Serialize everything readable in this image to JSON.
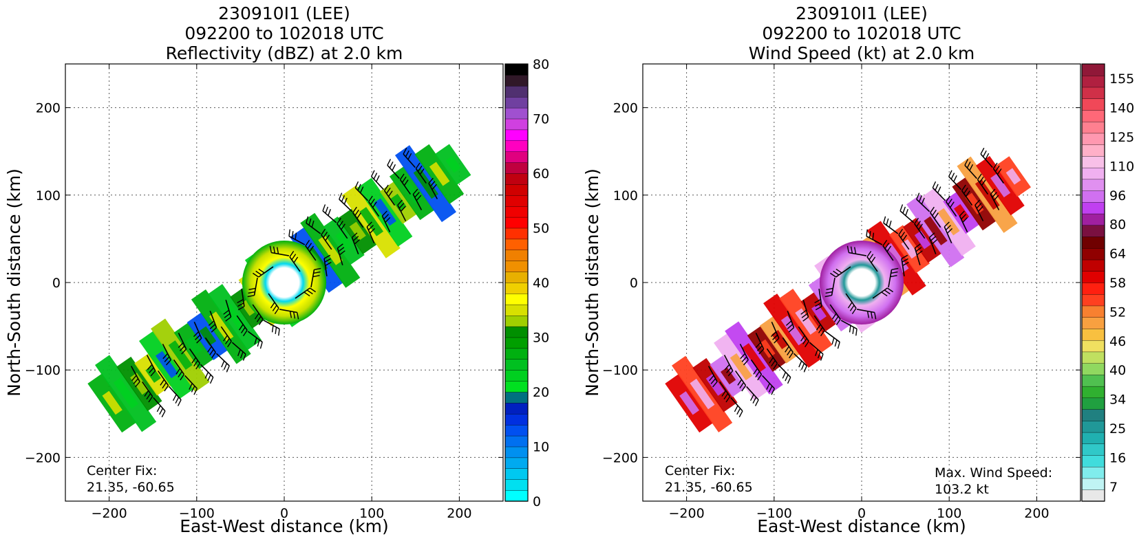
{
  "chart_data": [
    {
      "type": "heatmap",
      "title_lines": [
        "230910I1 (LEE)",
        "092200 to 102018 UTC",
        "Reflectivity (dBZ) at 2.0 km"
      ],
      "xlabel": "East-West distance (km)",
      "ylabel": "North-South distance (km)",
      "xlim": [
        -250,
        250
      ],
      "ylim": [
        -250,
        250
      ],
      "xticks": [
        -200,
        -100,
        0,
        100,
        200
      ],
      "yticks": [
        -200,
        -100,
        0,
        100,
        200
      ],
      "xtick_labels": [
        "−200",
        "−100",
        "0",
        "100",
        "200"
      ],
      "ytick_labels": [
        "−200",
        "−100",
        "0",
        "100",
        "200"
      ],
      "grid": true,
      "colorbar": {
        "min": 0,
        "max": 80,
        "tick_values": [
          0,
          10,
          20,
          30,
          40,
          50,
          60,
          70,
          80
        ],
        "tick_labels": [
          "0",
          "10",
          "20",
          "30",
          "40",
          "50",
          "60",
          "70",
          "80"
        ],
        "colors": [
          "#00ffff",
          "#00e0f0",
          "#00c8f0",
          "#00aaf0",
          "#0090f0",
          "#0070f0",
          "#0050f0",
          "#0030e0",
          "#0020c0",
          "#007080",
          "#00e020",
          "#00d020",
          "#00c020",
          "#00b010",
          "#009f00",
          "#008f00",
          "#9fcf00",
          "#d8e000",
          "#ffff00",
          "#f0d000",
          "#e8b000",
          "#f09000",
          "#f08000",
          "#ff6000",
          "#ff3000",
          "#ff0000",
          "#f00000",
          "#e00000",
          "#d00000",
          "#c00010",
          "#c0003f",
          "#e0007f",
          "#ff00c0",
          "#ff00ff",
          "#d040e0",
          "#a050d0",
          "#7040a0",
          "#503070",
          "#301828",
          "#000000"
        ]
      },
      "annotations": [
        {
          "lines": [
            "Center Fix:",
            "21.35, -60.65"
          ],
          "position": "bottom-left"
        }
      ],
      "storm": {
        "center": [
          0,
          0
        ],
        "band_angle_deg": 35,
        "max_extent_east_km": 200,
        "max_extent_west_km": -205,
        "eye_radius_km": 15
      }
    },
    {
      "type": "heatmap",
      "title_lines": [
        "230910I1 (LEE)",
        "092200 to 102018 UTC",
        "Wind Speed (kt) at 2.0 km"
      ],
      "xlabel": "East-West distance (km)",
      "ylabel": "North-South distance (km)",
      "xlim": [
        -250,
        250
      ],
      "ylim": [
        -250,
        250
      ],
      "xticks": [
        -200,
        -100,
        0,
        100,
        200
      ],
      "yticks": [
        -200,
        -100,
        0,
        100,
        200
      ],
      "xtick_labels": [
        "−200",
        "−100",
        "0",
        "100",
        "200"
      ],
      "ytick_labels": [
        "−200",
        "−100",
        "0",
        "100",
        "200"
      ],
      "grid": true,
      "colorbar": {
        "tick_labels": [
          "7",
          "16",
          "25",
          "34",
          "40",
          "46",
          "52",
          "58",
          "64",
          "80",
          "96",
          "110",
          "125",
          "140",
          "155"
        ],
        "colors": [
          "#e8e8e8",
          "#c0f4f4",
          "#80ecec",
          "#40dcdc",
          "#30c8c8",
          "#20b0b0",
          "#209898",
          "#208080",
          "#20a040",
          "#30b030",
          "#50c050",
          "#90d860",
          "#c0e060",
          "#f0e060",
          "#f8c040",
          "#f8a040",
          "#f88030",
          "#ff4020",
          "#ff2010",
          "#e00000",
          "#c00000",
          "#900000",
          "#700000",
          "#7a1040",
          "#a020a0",
          "#c040f0",
          "#d070f0",
          "#e090f0",
          "#f0b0f0",
          "#f8c0e8",
          "#ffb0c8",
          "#ff98b0",
          "#ff8090",
          "#ff6878",
          "#f04858",
          "#d03048",
          "#b02040",
          "#901838"
        ]
      },
      "annotations": [
        {
          "lines": [
            "Center Fix:",
            "21.35, -60.65"
          ],
          "position": "bottom-left"
        },
        {
          "lines": [
            "Max. Wind Speed:",
            "103.2 kt"
          ],
          "position": "bottom-right"
        }
      ],
      "max_wind_speed_kt": 103.2,
      "storm": {
        "center": [
          0,
          0
        ],
        "band_angle_deg": 35,
        "max_extent_east_km": 180,
        "max_extent_west_km": -205,
        "eye_radius_km": 15
      }
    }
  ]
}
